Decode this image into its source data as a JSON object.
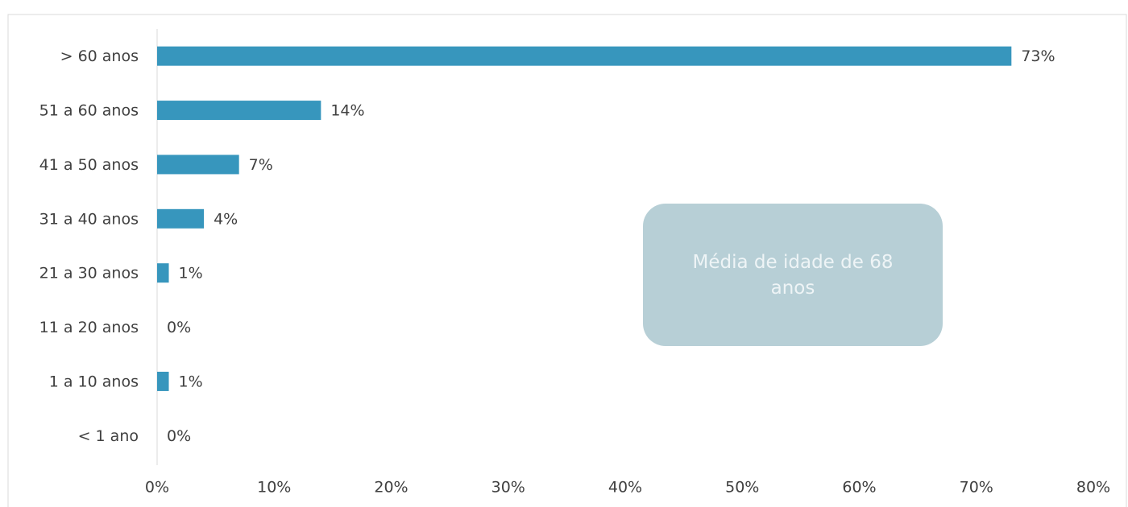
{
  "chart_data": {
    "type": "bar",
    "orientation": "horizontal",
    "categories": [
      "> 60 anos",
      "51 a 60 anos",
      "41 a 50 anos",
      "31 a 40 anos",
      "21 a 30 anos",
      "11 a 20 anos",
      "1 a 10 anos",
      "< 1 ano"
    ],
    "values": [
      73,
      14,
      7,
      4,
      1,
      0,
      1,
      0
    ],
    "value_labels": [
      "73%",
      "14%",
      "7%",
      "4%",
      "1%",
      "0%",
      "1%",
      "0%"
    ],
    "color": "#3796bd",
    "xlim": [
      0,
      80
    ],
    "xticks": [
      {
        "value": 0,
        "label": "0%"
      },
      {
        "value": 10,
        "label": "10%"
      },
      {
        "value": 20,
        "label": "20%"
      },
      {
        "value": 30,
        "label": "30%"
      },
      {
        "value": 40,
        "label": "40%"
      },
      {
        "value": 50,
        "label": "50%"
      },
      {
        "value": 60,
        "label": "60%"
      },
      {
        "value": 70,
        "label": "70%"
      },
      {
        "value": 80,
        "label": "80%"
      }
    ],
    "grid": false,
    "annotation": "Média de idade de 68 anos"
  }
}
